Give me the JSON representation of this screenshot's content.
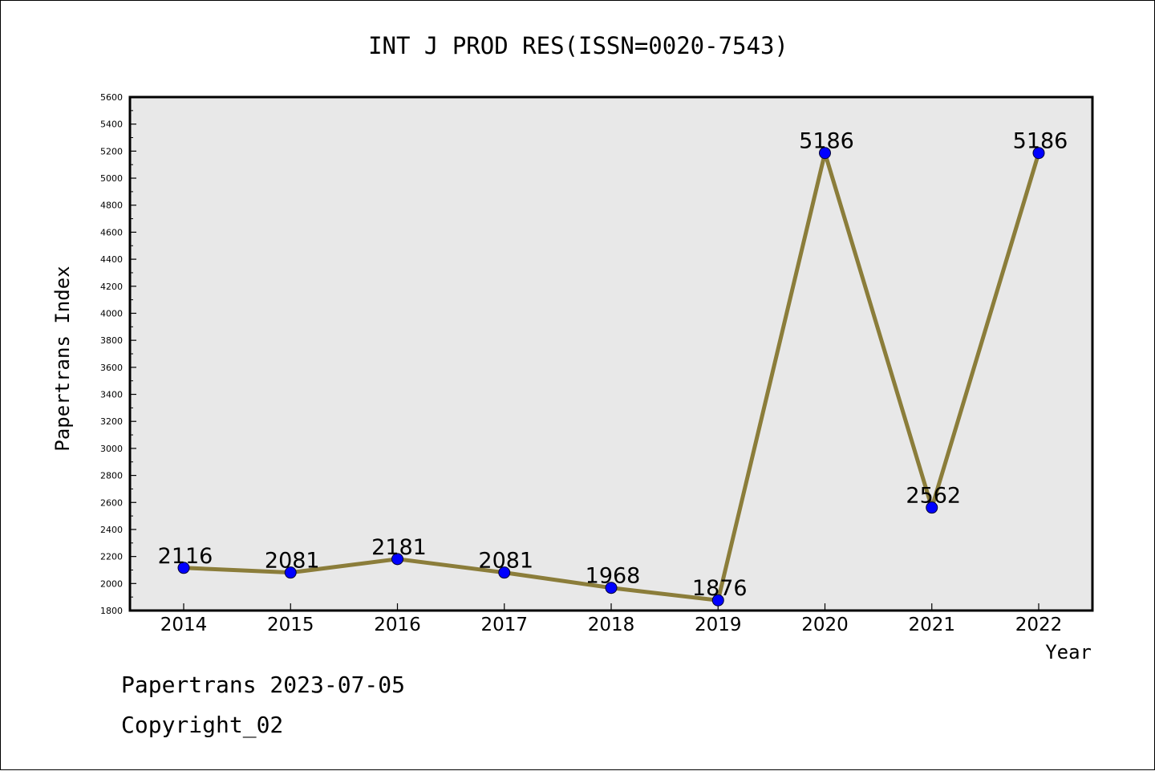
{
  "chart_data": {
    "type": "line",
    "title": "INT J PROD RES(ISSN=0020-7543)",
    "xlabel": "Year",
    "ylabel": "Papertrans Index",
    "x": [
      "2014",
      "2015",
      "2016",
      "2017",
      "2018",
      "2019",
      "2020",
      "2021",
      "2022"
    ],
    "series": [
      {
        "values": [
          2116,
          2081,
          2181,
          2081,
          1968,
          1876,
          5186,
          2562,
          5186
        ]
      }
    ],
    "data_labels": [
      "2116",
      "2081",
      "2181",
      "2081",
      "1968",
      "1876",
      "5186",
      "2562",
      "5186"
    ],
    "ylim": [
      1800,
      5600
    ],
    "yticks": [
      1800,
      2000,
      2200,
      2400,
      2600,
      2800,
      3000,
      3200,
      3400,
      3600,
      3800,
      4000,
      4200,
      4400,
      4600,
      4800,
      5000,
      5200,
      5400,
      5600
    ],
    "grid": false,
    "legend": "none",
    "line_color": "#8b7d3a",
    "marker_color": "#0000ff",
    "plot_background": "#e8e8e8"
  },
  "footer": {
    "line1": "Papertrans 2023-07-05",
    "line2": "Copyright_02"
  }
}
